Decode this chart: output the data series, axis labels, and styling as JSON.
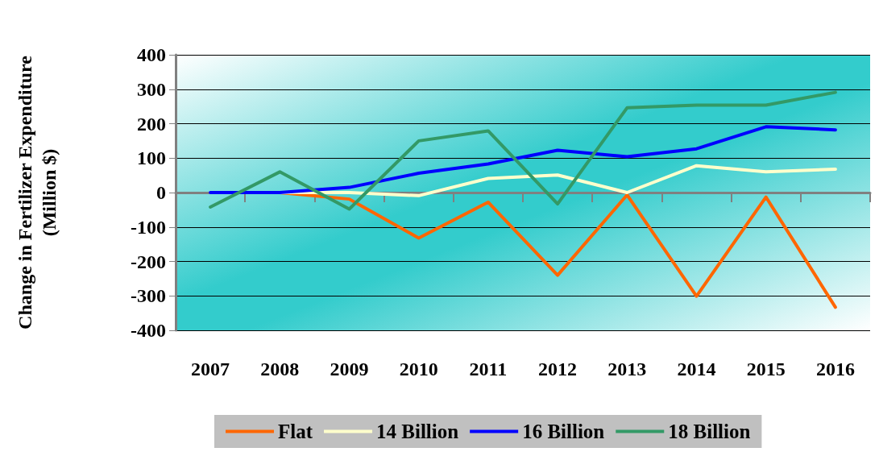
{
  "chart_data": {
    "type": "line",
    "ylabel": "Change in Fertilizer Expenditure\n(Million $)",
    "categories": [
      "2007",
      "2008",
      "2009",
      "2010",
      "2011",
      "2012",
      "2013",
      "2014",
      "2015",
      "2016"
    ],
    "series": [
      {
        "name": "Flat",
        "color": "#ff6600",
        "values": [
          null,
          0,
          -19,
          -132,
          -28,
          -240,
          -7,
          -301,
          -13,
          -333
        ]
      },
      {
        "name": "14 Billion",
        "color": "#ffffcc",
        "values": [
          null,
          0,
          0,
          -9,
          41,
          51,
          0,
          78,
          60,
          68
        ]
      },
      {
        "name": "16 Billion",
        "color": "#0000ff",
        "values": [
          0,
          0,
          15,
          56,
          83,
          123,
          104,
          127,
          191,
          182
        ]
      },
      {
        "name": "18 Billion",
        "color": "#339966",
        "values": [
          -42,
          60,
          -48,
          150,
          179,
          -33,
          246,
          254,
          254,
          291
        ]
      }
    ],
    "ylim": [
      -400,
      400
    ],
    "yticks": [
      -400,
      -300,
      -200,
      -100,
      0,
      100,
      200,
      300,
      400
    ],
    "grid": "y",
    "legend": "bottom",
    "marker": "none",
    "line_style": "solid"
  }
}
